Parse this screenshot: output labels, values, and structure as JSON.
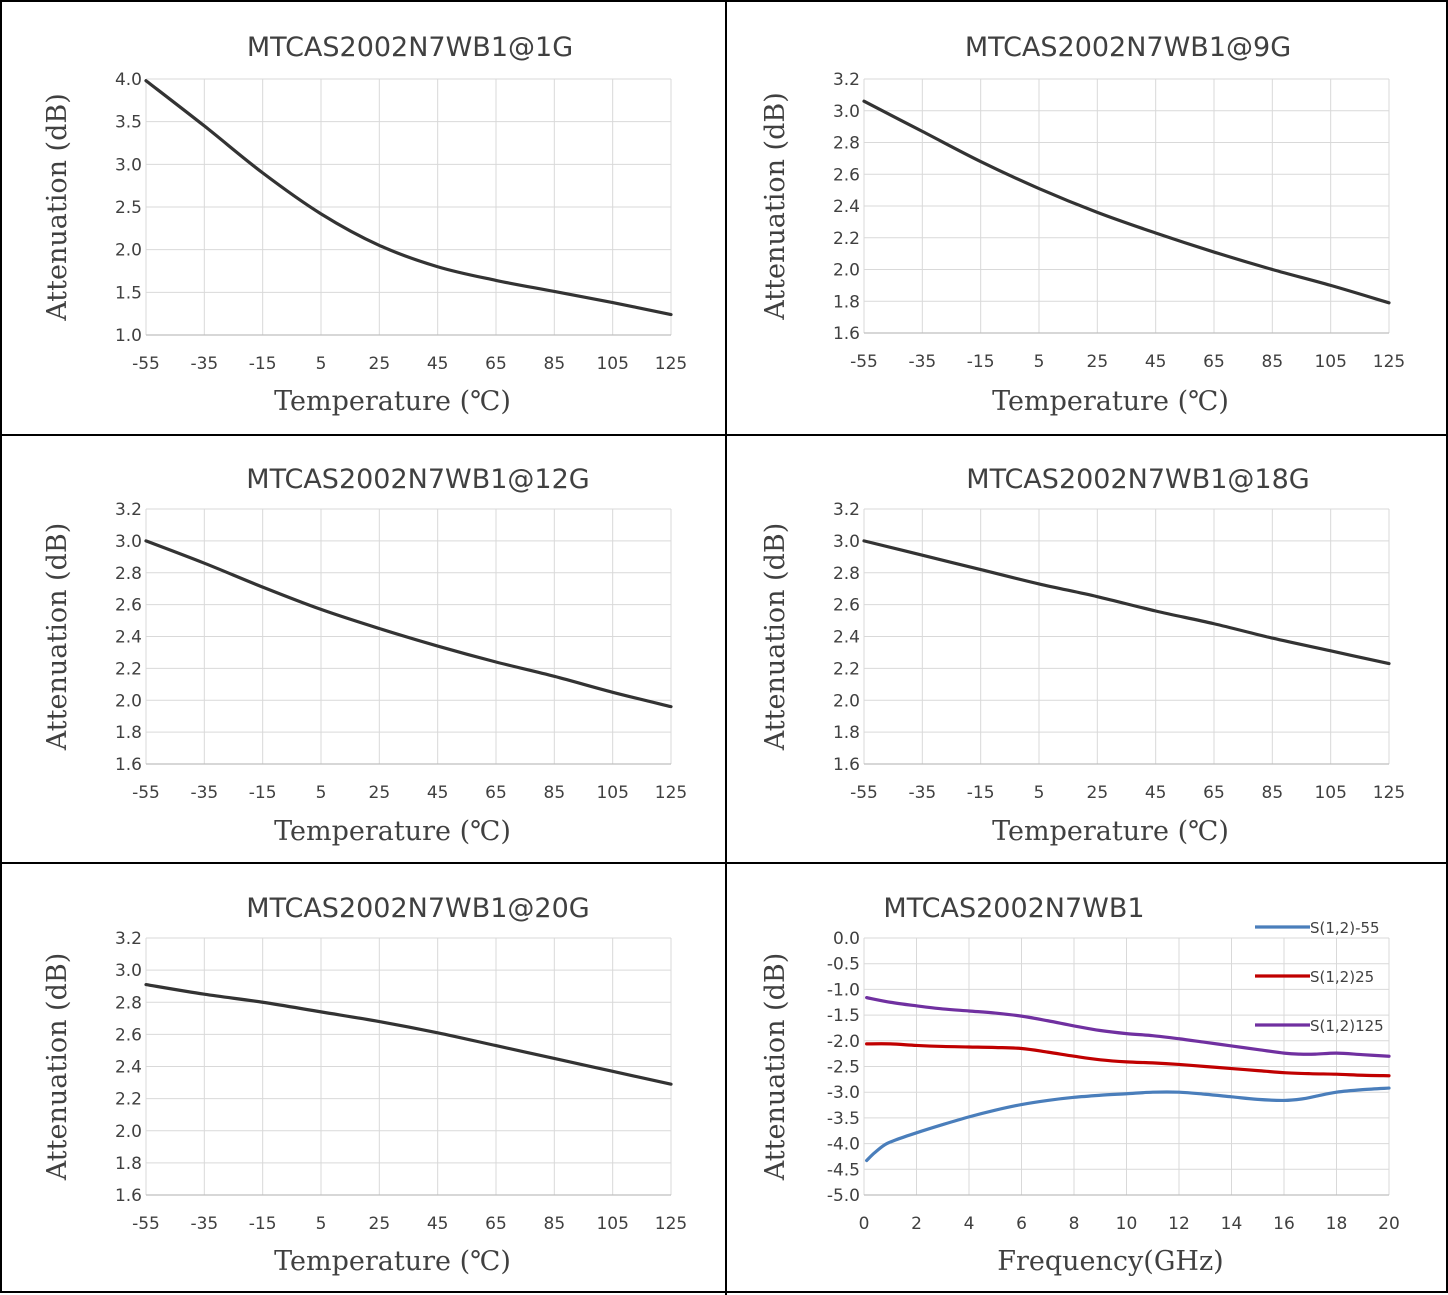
{
  "chart_data": [
    {
      "type": "line",
      "title": "MTCAS2002N7WB1@1G",
      "xlabel": "Temperature (℃)",
      "ylabel": "Attenuation (dB)",
      "x_ticks": [
        "-55",
        "-35",
        "-15",
        "5",
        "25",
        "45",
        "65",
        "85",
        "105",
        "125"
      ],
      "y_ticks": [
        "1.0",
        "1.5",
        "2.0",
        "2.5",
        "3.0",
        "3.5",
        "4.0"
      ],
      "xlim": [
        -55,
        125
      ],
      "ylim": [
        1.0,
        4.0
      ],
      "grid": true,
      "series": [
        {
          "color": "#333333",
          "x": [
            -55,
            -35,
            -15,
            5,
            25,
            45,
            65,
            85,
            105,
            125
          ],
          "y": [
            3.98,
            3.45,
            2.9,
            2.42,
            2.05,
            1.8,
            1.64,
            1.51,
            1.38,
            1.24
          ]
        }
      ]
    },
    {
      "type": "line",
      "title": "MTCAS2002N7WB1@9G",
      "xlabel": "Temperature (℃)",
      "ylabel": "Attenuation (dB)",
      "x_ticks": [
        "-55",
        "-35",
        "-15",
        "5",
        "25",
        "45",
        "65",
        "85",
        "105",
        "125"
      ],
      "y_ticks": [
        "1.6",
        "1.8",
        "2.0",
        "2.2",
        "2.4",
        "2.6",
        "2.8",
        "3.0",
        "3.2"
      ],
      "xlim": [
        -55,
        125
      ],
      "ylim": [
        1.6,
        3.2
      ],
      "grid": true,
      "series": [
        {
          "color": "#333333",
          "x": [
            -55,
            -35,
            -15,
            5,
            25,
            45,
            65,
            85,
            105,
            125
          ],
          "y": [
            3.06,
            2.87,
            2.68,
            2.51,
            2.36,
            2.23,
            2.11,
            2.0,
            1.9,
            1.79
          ]
        }
      ]
    },
    {
      "type": "line",
      "title": "MTCAS2002N7WB1@12G",
      "xlabel": "Temperature (℃)",
      "ylabel": "Attenuation (dB)",
      "x_ticks": [
        "-55",
        "-35",
        "-15",
        "5",
        "25",
        "45",
        "65",
        "85",
        "105",
        "125"
      ],
      "y_ticks": [
        "1.6",
        "1.8",
        "2.0",
        "2.2",
        "2.4",
        "2.6",
        "2.8",
        "3.0",
        "3.2"
      ],
      "xlim": [
        -55,
        125
      ],
      "ylim": [
        1.6,
        3.2
      ],
      "grid": true,
      "series": [
        {
          "color": "#333333",
          "x": [
            -55,
            -35,
            -15,
            5,
            25,
            45,
            65,
            85,
            105,
            125
          ],
          "y": [
            3.0,
            2.86,
            2.71,
            2.57,
            2.45,
            2.34,
            2.24,
            2.15,
            2.05,
            1.96
          ]
        }
      ]
    },
    {
      "type": "line",
      "title": "MTCAS2002N7WB1@18G",
      "xlabel": "Temperature (℃)",
      "ylabel": "Attenuation (dB)",
      "x_ticks": [
        "-55",
        "-35",
        "-15",
        "5",
        "25",
        "45",
        "65",
        "85",
        "105",
        "125"
      ],
      "y_ticks": [
        "1.6",
        "1.8",
        "2.0",
        "2.2",
        "2.4",
        "2.6",
        "2.8",
        "3.0",
        "3.2"
      ],
      "xlim": [
        -55,
        125
      ],
      "ylim": [
        1.6,
        3.2
      ],
      "grid": true,
      "series": [
        {
          "color": "#333333",
          "x": [
            -55,
            -35,
            -15,
            5,
            25,
            45,
            65,
            85,
            105,
            125
          ],
          "y": [
            3.0,
            2.91,
            2.82,
            2.73,
            2.65,
            2.56,
            2.48,
            2.39,
            2.31,
            2.23
          ]
        }
      ]
    },
    {
      "type": "line",
      "title": "MTCAS2002N7WB1@20G",
      "xlabel": "Temperature (℃)",
      "ylabel": "Attenuation (dB)",
      "x_ticks": [
        "-55",
        "-35",
        "-15",
        "5",
        "25",
        "45",
        "65",
        "85",
        "105",
        "125"
      ],
      "y_ticks": [
        "1.6",
        "1.8",
        "2.0",
        "2.2",
        "2.4",
        "2.6",
        "2.8",
        "3.0",
        "3.2"
      ],
      "xlim": [
        -55,
        125
      ],
      "ylim": [
        1.6,
        3.2
      ],
      "grid": true,
      "series": [
        {
          "color": "#333333",
          "x": [
            -55,
            -35,
            -15,
            5,
            25,
            45,
            65,
            85,
            105,
            125
          ],
          "y": [
            2.91,
            2.85,
            2.8,
            2.74,
            2.68,
            2.61,
            2.53,
            2.45,
            2.37,
            2.29
          ]
        }
      ]
    },
    {
      "type": "line",
      "title": "MTCAS2002N7WB1",
      "xlabel": "Frequency(GHz)",
      "ylabel": "Attenuation (dB)",
      "x_ticks": [
        "0",
        "2",
        "4",
        "6",
        "8",
        "10",
        "12",
        "14",
        "16",
        "18",
        "20"
      ],
      "y_ticks": [
        "-5.0",
        "-4.5",
        "-4.0",
        "-3.5",
        "-3.0",
        "-2.5",
        "-2.0",
        "-1.5",
        "-1.0",
        "-0.5",
        "0.0"
      ],
      "xlim": [
        0,
        20
      ],
      "ylim": [
        -5.0,
        0.0
      ],
      "grid": true,
      "legend_position": "top-right",
      "series": [
        {
          "name": "S(1,2)-55",
          "color": "#4a7ebb",
          "x": [
            0.1,
            0.4,
            0.8,
            1.2,
            2,
            3,
            4,
            5,
            6,
            7,
            8,
            9,
            10,
            11,
            12,
            13,
            14,
            15,
            16,
            16.7,
            17.2,
            18,
            19,
            20
          ],
          "y": [
            -4.33,
            -4.18,
            -4.02,
            -3.93,
            -3.79,
            -3.63,
            -3.48,
            -3.35,
            -3.24,
            -3.16,
            -3.1,
            -3.06,
            -3.03,
            -3.0,
            -3.0,
            -3.04,
            -3.09,
            -3.14,
            -3.16,
            -3.13,
            -3.08,
            -3.0,
            -2.95,
            -2.92
          ]
        },
        {
          "name": "S(1,2)25",
          "color": "#c00000",
          "x": [
            0.1,
            1,
            2,
            3,
            4,
            5,
            6,
            7,
            8,
            9,
            10,
            11,
            12,
            13,
            14,
            15,
            16,
            17,
            18,
            19,
            20
          ],
          "y": [
            -2.06,
            -2.06,
            -2.09,
            -2.11,
            -2.12,
            -2.13,
            -2.15,
            -2.22,
            -2.3,
            -2.37,
            -2.41,
            -2.43,
            -2.46,
            -2.5,
            -2.54,
            -2.58,
            -2.62,
            -2.64,
            -2.65,
            -2.67,
            -2.68
          ]
        },
        {
          "name": "S(1,2)125",
          "color": "#7030a0",
          "x": [
            0.1,
            1,
            2,
            3,
            4,
            5,
            6,
            7,
            8,
            9,
            10,
            11,
            12,
            13,
            14,
            15,
            16,
            16.6,
            17.2,
            18,
            19,
            20
          ],
          "y": [
            -1.16,
            -1.25,
            -1.32,
            -1.38,
            -1.42,
            -1.46,
            -1.52,
            -1.61,
            -1.71,
            -1.8,
            -1.86,
            -1.9,
            -1.96,
            -2.03,
            -2.1,
            -2.17,
            -2.24,
            -2.26,
            -2.26,
            -2.24,
            -2.27,
            -2.3
          ]
        }
      ]
    }
  ]
}
